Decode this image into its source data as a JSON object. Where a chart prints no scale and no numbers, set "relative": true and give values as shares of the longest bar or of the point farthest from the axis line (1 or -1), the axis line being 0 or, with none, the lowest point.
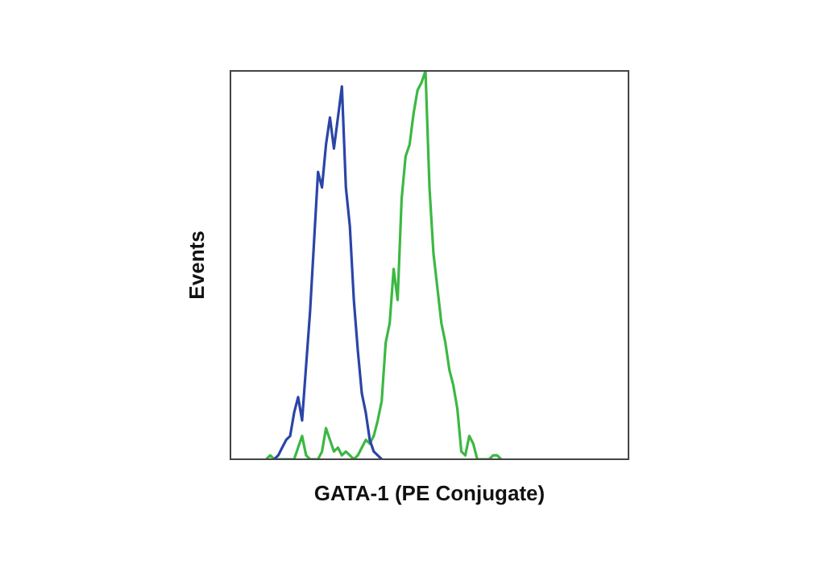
{
  "chart_data": {
    "type": "line",
    "xlabel": "GATA-1 (PE Conjugate)",
    "ylabel": "Events",
    "relative": true,
    "tick_labels": false,
    "categories": [
      null,
      null,
      null,
      null,
      null,
      null,
      null,
      null,
      null,
      null,
      null,
      null,
      null,
      null,
      null,
      null,
      null,
      null,
      null,
      null,
      null,
      null,
      null,
      null,
      null,
      null,
      null,
      null,
      null,
      null,
      null,
      null,
      null,
      null,
      null,
      null,
      null,
      null,
      null,
      null,
      null,
      null,
      null,
      null,
      null,
      null,
      null,
      null,
      null,
      null,
      null,
      null,
      null,
      null,
      null,
      null,
      null,
      null,
      null,
      null,
      null,
      null,
      null,
      null,
      null,
      null,
      null,
      null,
      null,
      null,
      null,
      null,
      null,
      null,
      null,
      null,
      null,
      null,
      null,
      null,
      null,
      null,
      null,
      null,
      null,
      null,
      null,
      null,
      null,
      null,
      null,
      null,
      null,
      null,
      null,
      null,
      null,
      null,
      null,
      null,
      null
    ],
    "series": [
      {
        "color": "#2b45a8",
        "values": [
          null,
          null,
          null,
          null,
          null,
          null,
          null,
          null,
          null,
          null,
          null,
          0,
          0.01,
          0.03,
          0.05,
          0.06,
          0.12,
          0.16,
          0.1,
          0.24,
          0.38,
          0.56,
          0.74,
          0.7,
          0.81,
          0.88,
          0.8,
          0.88,
          0.96,
          0.7,
          0.6,
          0.41,
          0.28,
          0.17,
          0.12,
          0.05,
          0.02,
          0.01,
          0,
          null,
          null,
          null,
          null,
          null,
          null,
          null,
          null,
          null,
          null,
          null,
          null,
          null,
          null,
          null,
          null,
          null,
          null,
          null,
          null,
          null,
          null,
          null,
          null,
          null,
          null,
          null,
          null,
          null,
          null,
          null,
          null,
          null,
          null,
          null,
          null,
          null,
          null,
          null,
          null,
          null,
          null,
          null,
          null,
          null,
          null,
          null,
          null,
          null,
          null,
          null,
          null,
          null,
          null,
          null,
          null,
          null,
          null,
          null,
          null,
          null,
          null
        ]
      },
      {
        "color": "#3cb843",
        "values": [
          null,
          null,
          null,
          null,
          null,
          null,
          null,
          null,
          null,
          0,
          0.01,
          0,
          0,
          0,
          0,
          0,
          0,
          0.03,
          0.06,
          0.01,
          0,
          0,
          0,
          0.02,
          0.08,
          0.05,
          0.02,
          0.03,
          0.01,
          0.02,
          0.01,
          0,
          0.01,
          0.03,
          0.05,
          0.04,
          0.06,
          0.1,
          0.15,
          0.3,
          0.35,
          0.49,
          0.41,
          0.67,
          0.78,
          0.81,
          0.89,
          0.95,
          0.97,
          1,
          0.7,
          0.53,
          0.44,
          0.35,
          0.3,
          0.23,
          0.19,
          0.13,
          0.02,
          0.01,
          0.06,
          0.04,
          0,
          0,
          0,
          0,
          0.01,
          0.01,
          0,
          null,
          null,
          null,
          null,
          null,
          null,
          null,
          null,
          null,
          null,
          null,
          null,
          null,
          null,
          null,
          null,
          null,
          null,
          null,
          null,
          null,
          null,
          null,
          null,
          null,
          null,
          null,
          null,
          null,
          null,
          null,
          null
        ]
      }
    ]
  }
}
